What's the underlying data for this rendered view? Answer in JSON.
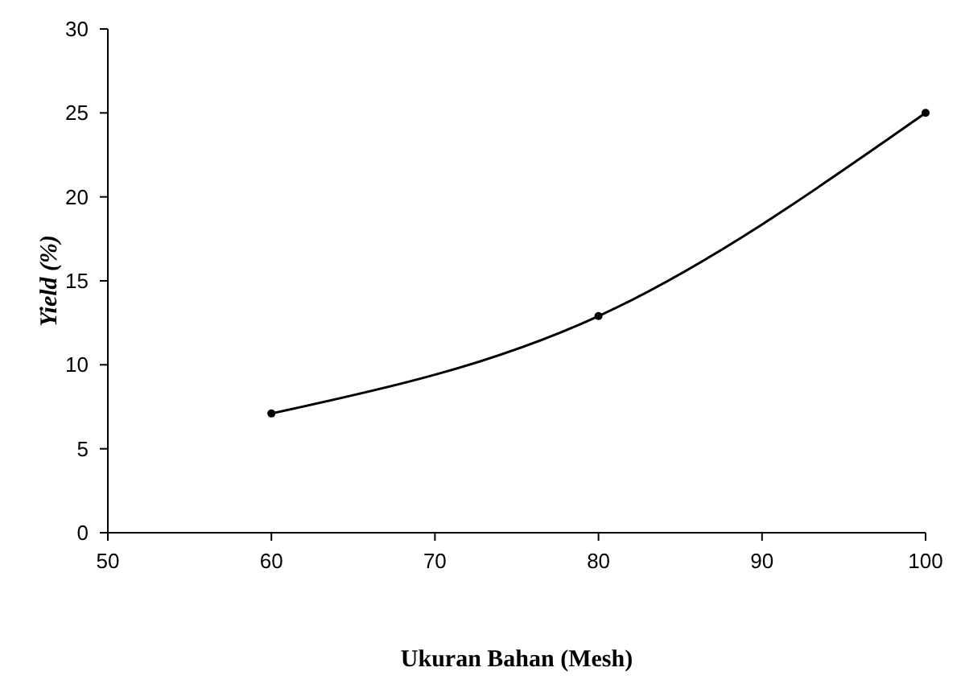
{
  "chart_data": {
    "type": "line",
    "xlabel": "Ukuran Bahan (Mesh)",
    "ylabel": "Yield (%)",
    "x": [
      60,
      80,
      100
    ],
    "series": [
      {
        "color": "#000000",
        "values": [
          7.1,
          12.9,
          25
        ]
      }
    ],
    "xlim": [
      50,
      100
    ],
    "xticks": [
      50,
      60,
      70,
      80,
      90,
      100
    ],
    "ylim": [
      0,
      30
    ],
    "yticks": [
      0,
      5,
      10,
      15,
      20,
      25,
      30
    ],
    "grid": false,
    "marker": "circle",
    "line_style": "solid"
  }
}
